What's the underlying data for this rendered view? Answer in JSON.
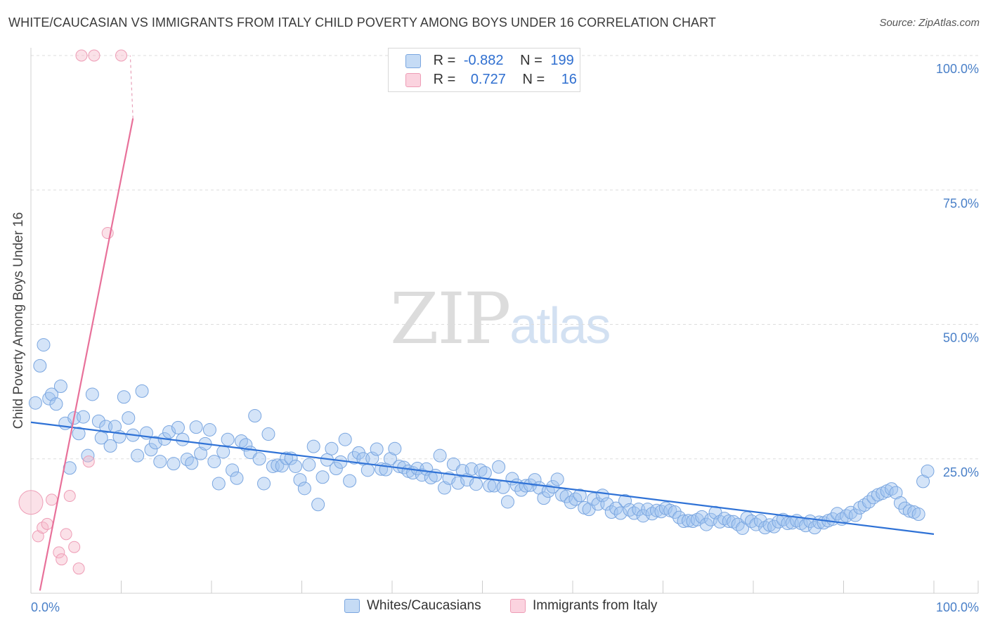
{
  "header": {
    "title": "WHITE/CAUCASIAN VS IMMIGRANTS FROM ITALY CHILD POVERTY AMONG BOYS UNDER 16 CORRELATION CHART",
    "source": "Source: ZipAtlas.com"
  },
  "watermark": {
    "zip": "ZIP",
    "atlas": "atlas"
  },
  "legend": {
    "rows": [
      {
        "r_label": "R =",
        "r_value": "-0.882",
        "n_label": "N =",
        "n_value": "199",
        "color": "#a9c8f0"
      },
      {
        "r_label": "R =",
        "r_value": "0.727",
        "n_label": "N =",
        "n_value": "16",
        "color": "#f7bccd"
      }
    ]
  },
  "bottom_legend": {
    "items": [
      {
        "label": "Whites/Caucasians",
        "color": "#a9c8f0"
      },
      {
        "label": "Immigrants from Italy",
        "color": "#f7bccd"
      }
    ]
  },
  "chart_data": {
    "type": "scatter",
    "title": "WHITE/CAUCASIAN VS IMMIGRANTS FROM ITALY CHILD POVERTY AMONG BOYS UNDER 16 CORRELATION CHART",
    "xlabel": "",
    "ylabel": "Child Poverty Among Boys Under 16",
    "x_tick_labels": [
      "0.0%",
      "100.0%"
    ],
    "y_tick_labels": [
      "25.0%",
      "50.0%",
      "75.0%",
      "100.0%"
    ],
    "y_ticks": [
      25,
      50,
      75,
      100
    ],
    "xlim": [
      0,
      100
    ],
    "ylim": [
      0,
      100
    ],
    "grid": true,
    "colors": {
      "blue": "#4a86d8",
      "blue_fill": "rgba(160,195,240,0.45)",
      "pink": "#e8719a",
      "pink_fill": "rgba(247,188,205,0.45)"
    },
    "series": [
      {
        "name": "Whites/Caucasians",
        "trend": {
          "x": [
            0,
            100
          ],
          "y": [
            31.8,
            11.0
          ]
        },
        "points": [
          [
            0.5,
            35.4
          ],
          [
            1.0,
            42.3
          ],
          [
            1.4,
            46.2
          ],
          [
            2.0,
            36.2
          ],
          [
            2.3,
            37.0
          ],
          [
            2.8,
            35.2
          ],
          [
            3.3,
            38.5
          ],
          [
            3.8,
            31.6
          ],
          [
            4.3,
            23.3
          ],
          [
            4.8,
            32.6
          ],
          [
            5.3,
            29.7
          ],
          [
            5.8,
            32.8
          ],
          [
            6.3,
            25.6
          ],
          [
            6.8,
            37.0
          ],
          [
            7.5,
            32.0
          ],
          [
            7.8,
            28.9
          ],
          [
            8.3,
            31.0
          ],
          [
            8.8,
            27.4
          ],
          [
            9.3,
            31.0
          ],
          [
            9.8,
            29.1
          ],
          [
            10.3,
            36.5
          ],
          [
            10.8,
            32.6
          ],
          [
            11.3,
            29.4
          ],
          [
            11.8,
            25.6
          ],
          [
            12.3,
            37.6
          ],
          [
            12.8,
            29.8
          ],
          [
            13.3,
            26.7
          ],
          [
            13.8,
            28.0
          ],
          [
            14.3,
            24.5
          ],
          [
            14.8,
            28.7
          ],
          [
            15.3,
            30.0
          ],
          [
            15.8,
            24.1
          ],
          [
            16.3,
            30.8
          ],
          [
            16.8,
            28.6
          ],
          [
            17.3,
            24.9
          ],
          [
            17.8,
            24.2
          ],
          [
            18.3,
            30.9
          ],
          [
            18.8,
            26.0
          ],
          [
            19.3,
            27.8
          ],
          [
            19.8,
            30.4
          ],
          [
            20.3,
            24.5
          ],
          [
            20.8,
            20.4
          ],
          [
            21.3,
            26.3
          ],
          [
            21.8,
            28.6
          ],
          [
            22.3,
            22.9
          ],
          [
            22.8,
            21.4
          ],
          [
            23.3,
            28.3
          ],
          [
            23.8,
            27.6
          ],
          [
            24.3,
            26.2
          ],
          [
            24.8,
            33.0
          ],
          [
            25.3,
            25.0
          ],
          [
            25.8,
            20.4
          ],
          [
            26.3,
            29.6
          ],
          [
            26.8,
            23.6
          ],
          [
            27.3,
            23.8
          ],
          [
            27.8,
            23.7
          ],
          [
            28.3,
            25.1
          ],
          [
            28.8,
            25.1
          ],
          [
            29.3,
            23.6
          ],
          [
            29.8,
            21.1
          ],
          [
            30.3,
            19.5
          ],
          [
            30.8,
            23.9
          ],
          [
            31.3,
            27.3
          ],
          [
            31.8,
            16.5
          ],
          [
            32.3,
            21.6
          ],
          [
            32.8,
            24.8
          ],
          [
            33.3,
            26.9
          ],
          [
            33.8,
            23.2
          ],
          [
            34.3,
            24.4
          ],
          [
            34.8,
            28.6
          ],
          [
            35.3,
            20.9
          ],
          [
            35.8,
            25.2
          ],
          [
            36.3,
            26.1
          ],
          [
            36.8,
            25.0
          ],
          [
            37.3,
            22.9
          ],
          [
            37.8,
            25.1
          ],
          [
            38.3,
            26.8
          ],
          [
            38.8,
            23.1
          ],
          [
            39.3,
            23.0
          ],
          [
            39.8,
            25.0
          ],
          [
            40.3,
            26.9
          ],
          [
            40.8,
            23.6
          ],
          [
            41.3,
            23.4
          ],
          [
            41.8,
            22.7
          ],
          [
            42.3,
            22.4
          ],
          [
            42.8,
            23.2
          ],
          [
            43.3,
            22.0
          ],
          [
            43.8,
            23.1
          ],
          [
            44.3,
            21.5
          ],
          [
            44.8,
            21.9
          ],
          [
            45.3,
            25.6
          ],
          [
            45.8,
            19.6
          ],
          [
            46.3,
            21.4
          ],
          [
            46.8,
            24.0
          ],
          [
            47.3,
            20.5
          ],
          [
            47.8,
            22.8
          ],
          [
            48.3,
            21.1
          ],
          [
            48.8,
            23.1
          ],
          [
            49.3,
            20.3
          ],
          [
            49.8,
            22.9
          ],
          [
            50.3,
            22.4
          ],
          [
            50.8,
            20.0
          ],
          [
            51.3,
            20.0
          ],
          [
            51.8,
            23.5
          ],
          [
            52.3,
            19.7
          ],
          [
            52.8,
            17.0
          ],
          [
            53.3,
            21.3
          ],
          [
            53.8,
            20.1
          ],
          [
            54.3,
            19.2
          ],
          [
            54.8,
            20.0
          ],
          [
            55.3,
            20.1
          ],
          [
            55.8,
            21.1
          ],
          [
            56.3,
            19.6
          ],
          [
            56.8,
            17.7
          ],
          [
            57.3,
            19.0
          ],
          [
            57.8,
            19.8
          ],
          [
            58.3,
            21.2
          ],
          [
            58.8,
            18.3
          ],
          [
            59.3,
            18.0
          ],
          [
            59.8,
            16.9
          ],
          [
            60.3,
            17.5
          ],
          [
            60.8,
            18.2
          ],
          [
            61.3,
            15.9
          ],
          [
            61.8,
            15.6
          ],
          [
            62.3,
            17.5
          ],
          [
            62.8,
            16.6
          ],
          [
            63.3,
            18.2
          ],
          [
            63.8,
            16.6
          ],
          [
            64.3,
            15.1
          ],
          [
            64.8,
            15.8
          ],
          [
            65.3,
            14.9
          ],
          [
            65.8,
            17.2
          ],
          [
            66.3,
            15.5
          ],
          [
            66.8,
            14.9
          ],
          [
            67.3,
            15.6
          ],
          [
            67.8,
            14.4
          ],
          [
            68.3,
            15.6
          ],
          [
            68.8,
            14.8
          ],
          [
            69.3,
            15.4
          ],
          [
            69.8,
            15.2
          ],
          [
            70.3,
            15.8
          ],
          [
            70.8,
            15.4
          ],
          [
            71.3,
            15.1
          ],
          [
            71.8,
            14.1
          ],
          [
            72.3,
            13.4
          ],
          [
            72.8,
            13.5
          ],
          [
            73.3,
            13.4
          ],
          [
            73.8,
            13.7
          ],
          [
            74.3,
            14.2
          ],
          [
            74.8,
            12.8
          ],
          [
            75.3,
            13.7
          ],
          [
            75.8,
            15.0
          ],
          [
            76.3,
            13.3
          ],
          [
            76.8,
            13.9
          ],
          [
            77.3,
            13.4
          ],
          [
            77.8,
            13.3
          ],
          [
            78.3,
            12.8
          ],
          [
            78.8,
            12.1
          ],
          [
            79.3,
            14.0
          ],
          [
            79.8,
            13.4
          ],
          [
            80.3,
            12.8
          ],
          [
            80.8,
            13.5
          ],
          [
            81.3,
            12.2
          ],
          [
            81.8,
            12.7
          ],
          [
            82.3,
            12.4
          ],
          [
            82.8,
            13.3
          ],
          [
            83.3,
            13.7
          ],
          [
            83.8,
            13.0
          ],
          [
            84.3,
            13.1
          ],
          [
            84.8,
            13.5
          ],
          [
            85.3,
            13.0
          ],
          [
            85.8,
            12.6
          ],
          [
            86.3,
            13.4
          ],
          [
            86.8,
            12.2
          ],
          [
            87.3,
            13.2
          ],
          [
            87.8,
            13.1
          ],
          [
            88.3,
            13.5
          ],
          [
            88.8,
            13.8
          ],
          [
            89.3,
            14.8
          ],
          [
            89.8,
            13.8
          ],
          [
            90.3,
            14.4
          ],
          [
            90.8,
            15.0
          ],
          [
            91.3,
            14.5
          ],
          [
            91.8,
            15.9
          ],
          [
            92.3,
            16.4
          ],
          [
            92.8,
            17.0
          ],
          [
            93.3,
            17.8
          ],
          [
            93.8,
            18.3
          ],
          [
            94.3,
            18.6
          ],
          [
            94.8,
            19.0
          ],
          [
            95.3,
            19.4
          ],
          [
            95.8,
            18.7
          ],
          [
            96.3,
            16.8
          ],
          [
            96.8,
            15.8
          ],
          [
            97.3,
            15.3
          ],
          [
            97.8,
            15.1
          ],
          [
            98.3,
            14.7
          ],
          [
            98.8,
            20.8
          ],
          [
            99.3,
            22.7
          ]
        ]
      },
      {
        "name": "Immigrants from Italy",
        "trend": {
          "x": [
            1.0,
            11.3
          ],
          "y": [
            0.5,
            88.3
          ],
          "dashed_to": {
            "x": 11.0,
            "y": 100
          }
        },
        "points": [
          [
            0.0,
            16.9
          ],
          [
            0.8,
            10.6
          ],
          [
            1.3,
            12.2
          ],
          [
            1.8,
            12.9
          ],
          [
            2.3,
            17.4
          ],
          [
            3.1,
            7.6
          ],
          [
            3.4,
            6.3
          ],
          [
            3.9,
            11.0
          ],
          [
            4.3,
            18.1
          ],
          [
            4.8,
            8.6
          ],
          [
            5.3,
            4.6
          ],
          [
            6.4,
            24.5
          ],
          [
            8.5,
            67.0
          ],
          [
            5.6,
            100.0
          ],
          [
            7.0,
            100.0
          ],
          [
            10.0,
            100.0
          ]
        ]
      }
    ]
  }
}
